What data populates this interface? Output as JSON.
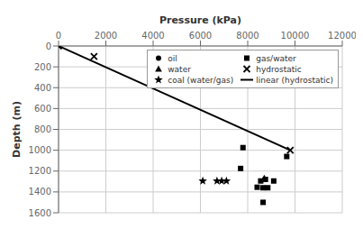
{
  "chart_data": {
    "type": "scatter",
    "xlabel": "Pressure (kPa)",
    "ylabel": "Depth (m)",
    "xlim": [
      0,
      12000
    ],
    "ylim": [
      1600,
      0
    ],
    "xticks": [
      0,
      2000,
      4000,
      6000,
      8000,
      10000,
      12000
    ],
    "yticks": [
      0,
      200,
      400,
      600,
      800,
      1000,
      1200,
      1400,
      1600
    ],
    "grid": true,
    "legend": "upper right",
    "series": [
      {
        "name": "oil",
        "type": "scatter",
        "marker": "circle",
        "color": "#000000",
        "values": []
      },
      {
        "name": "gas/water",
        "type": "scatter",
        "marker": "square",
        "color": "#000000",
        "values": [
          [
            7800,
            975
          ],
          [
            9650,
            1060
          ],
          [
            7700,
            1175
          ],
          [
            8550,
            1295
          ],
          [
            8750,
            1280
          ],
          [
            9100,
            1295
          ],
          [
            8400,
            1355
          ],
          [
            8650,
            1360
          ],
          [
            8850,
            1360
          ],
          [
            8650,
            1500
          ]
        ]
      },
      {
        "name": "water",
        "type": "scatter",
        "marker": "triangle",
        "color": "#000000",
        "values": [
          [
            8700,
            1270
          ]
        ]
      },
      {
        "name": "hydrostatic",
        "type": "scatter",
        "marker": "x",
        "color": "#000000",
        "values": [
          [
            0,
            0
          ],
          [
            1500,
            100
          ],
          [
            9800,
            1000
          ]
        ]
      },
      {
        "name": "coal (water/gas)",
        "type": "scatter",
        "marker": "star",
        "color": "#000000",
        "values": [
          [
            6100,
            1295
          ],
          [
            6700,
            1295
          ],
          [
            6900,
            1295
          ],
          [
            7100,
            1295
          ]
        ]
      },
      {
        "name": "linear (hydrostatic)",
        "type": "line",
        "line_style": "solid",
        "color": "#000000",
        "values": [
          [
            0,
            0
          ],
          [
            9800,
            1000
          ]
        ]
      }
    ]
  }
}
